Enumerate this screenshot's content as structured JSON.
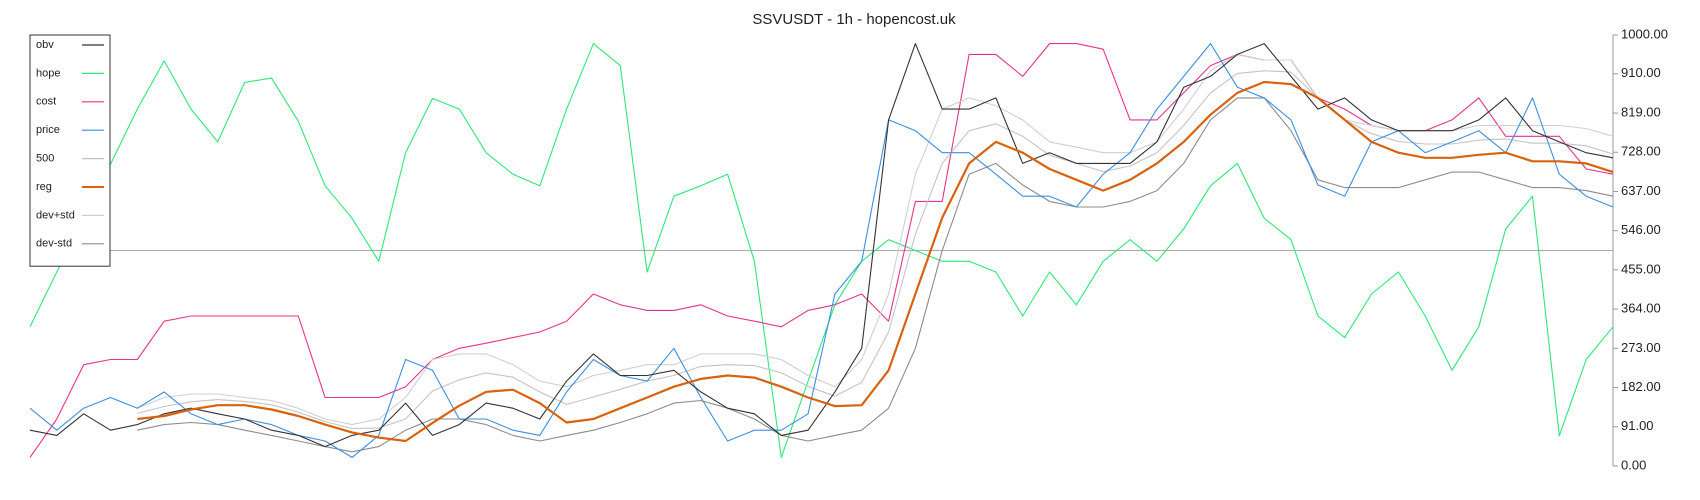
{
  "chart_data": {
    "type": "line",
    "title": "SSVUSDT - 1h - hopencost.uk",
    "ylim": [
      0,
      1000
    ],
    "yticks": [
      {
        "value": 0,
        "label": "0.00"
      },
      {
        "value": 91,
        "label": "91.00"
      },
      {
        "value": 182,
        "label": "182.00"
      },
      {
        "value": 273,
        "label": "273.00"
      },
      {
        "value": 364,
        "label": "364.00"
      },
      {
        "value": 455,
        "label": "455.00"
      },
      {
        "value": 546,
        "label": "546.00"
      },
      {
        "value": 637,
        "label": "637.00"
      },
      {
        "value": 728,
        "label": "728.00"
      },
      {
        "value": 819,
        "label": "819.00"
      },
      {
        "value": 910,
        "label": "910.00"
      },
      {
        "value": 1000,
        "label": "1000.00"
      }
    ],
    "hline": 500,
    "legend": "upper-left",
    "series": [
      {
        "name": "obv",
        "color": "#333333",
        "values": [
          83,
          71,
          121,
          83,
          96,
          121,
          134,
          121,
          109,
          83,
          71,
          45,
          71,
          83,
          146,
          71,
          96,
          146,
          134,
          109,
          197,
          260,
          210,
          210,
          222,
          172,
          134,
          121,
          71,
          83,
          172,
          273,
          803,
          980,
          828,
          828,
          854,
          702,
          727,
          702,
          702,
          702,
          752,
          879,
          904,
          955,
          980,
          904,
          828,
          854,
          803,
          778,
          778,
          778,
          803,
          854,
          778,
          752,
          727,
          715
        ]
      },
      {
        "name": "hope",
        "color": "#2ee67a",
        "values": [
          323,
          450,
          575,
          700,
          828,
          940,
          828,
          752,
          890,
          900,
          800,
          650,
          575,
          475,
          727,
          853,
          828,
          727,
          677,
          650,
          828,
          980,
          929,
          450,
          626,
          650,
          677,
          475,
          20,
          197,
          374,
          475,
          525,
          500,
          475,
          475,
          450,
          348,
          450,
          374,
          475,
          525,
          475,
          550,
          650,
          702,
          575,
          525,
          348,
          298,
          399,
          450,
          348,
          222,
          323,
          550,
          626,
          70,
          247,
          323
        ]
      },
      {
        "name": "cost",
        "color": "#e6338f",
        "values": [
          20,
          109,
          235,
          247,
          247,
          336,
          348,
          348,
          348,
          348,
          348,
          159,
          159,
          159,
          184,
          247,
          273,
          285,
          298,
          311,
          336,
          399,
          374,
          361,
          361,
          374,
          348,
          336,
          323,
          361,
          374,
          399,
          336,
          614,
          614,
          955,
          955,
          904,
          980,
          980,
          967,
          803,
          803,
          866,
          929,
          955,
          942,
          942,
          854,
          828,
          790,
          778,
          778,
          803,
          854,
          765,
          765,
          765,
          689,
          677
        ]
      },
      {
        "name": "price",
        "color": "#3d8fe0",
        "values": [
          134,
          83,
          134,
          159,
          134,
          172,
          121,
          96,
          109,
          96,
          71,
          58,
          20,
          71,
          247,
          222,
          109,
          109,
          83,
          71,
          172,
          247,
          210,
          197,
          273,
          159,
          58,
          83,
          83,
          121,
          399,
          475,
          803,
          778,
          727,
          727,
          677,
          626,
          626,
          601,
          677,
          727,
          828,
          904,
          980,
          879,
          854,
          803,
          652,
          626,
          752,
          778,
          727,
          752,
          778,
          727,
          854,
          677,
          626,
          601
        ]
      },
      {
        "name": "500",
        "color": "#c4c4c4",
        "values": [
          null,
          null,
          null,
          null,
          122,
          138,
          149,
          154,
          150,
          142,
          125,
          103,
          87,
          88,
          109,
          174,
          200,
          216,
          206,
          172,
          143,
          160,
          178,
          197,
          210,
          231,
          235,
          233,
          216,
          185,
          162,
          194,
          311,
          538,
          702,
          778,
          794,
          765,
          721,
          702,
          683,
          696,
          727,
          790,
          866,
          911,
          917,
          914,
          854,
          803,
          771,
          753,
          747,
          747,
          756,
          759,
          749,
          749,
          743,
          724
        ]
      },
      {
        "name": "reg",
        "color": "#d9620f",
        "values": [
          null,
          null,
          null,
          null,
          109,
          116,
          131,
          141,
          141,
          131,
          116,
          96,
          78,
          66,
          58,
          100,
          140,
          172,
          177,
          146,
          101,
          109,
          134,
          159,
          184,
          202,
          210,
          205,
          184,
          159,
          139,
          141,
          222,
          399,
          576,
          702,
          752,
          727,
          689,
          664,
          639,
          664,
          702,
          752,
          815,
          866,
          891,
          886,
          854,
          803,
          752,
          727,
          715,
          715,
          722,
          727,
          707,
          707,
          702,
          682
        ]
      },
      {
        "name": "dev+std",
        "color": "#d0d0d0",
        "values": [
          null,
          null,
          null,
          null,
          134,
          159,
          167,
          167,
          159,
          152,
          134,
          109,
          96,
          109,
          159,
          247,
          260,
          260,
          235,
          197,
          184,
          210,
          222,
          235,
          235,
          260,
          260,
          260,
          247,
          210,
          184,
          247,
          399,
          677,
          828,
          854,
          836,
          803,
          752,
          740,
          727,
          727,
          752,
          828,
          917,
          955,
          942,
          942,
          854,
          803,
          790,
          778,
          778,
          778,
          790,
          790,
          790,
          790,
          783,
          765
        ]
      },
      {
        "name": "dev-std",
        "color": "#8c8c8c",
        "values": [
          null,
          null,
          null,
          null,
          83,
          96,
          101,
          96,
          83,
          71,
          58,
          45,
          33,
          45,
          83,
          109,
          109,
          96,
          71,
          58,
          71,
          83,
          101,
          121,
          146,
          152,
          134,
          109,
          71,
          58,
          71,
          83,
          134,
          273,
          500,
          677,
          702,
          652,
          614,
          601,
          601,
          614,
          639,
          702,
          803,
          854,
          854,
          778,
          664,
          646,
          646,
          646,
          664,
          682,
          682,
          664,
          646,
          646,
          639,
          626
        ]
      }
    ]
  }
}
